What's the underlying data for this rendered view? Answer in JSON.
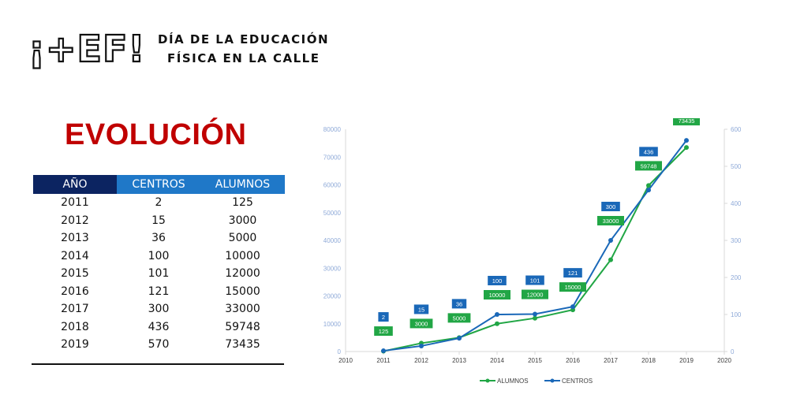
{
  "branding": {
    "logo_text": "¡+EF!",
    "tagline_line1": "DÍA DE LA EDUCACIÓN",
    "tagline_line2": "FÍSICA EN LA CALLE"
  },
  "heading": "EVOLUCIÓN",
  "table": {
    "columns": [
      "AÑO",
      "CENTROS",
      "ALUMNOS"
    ],
    "rows": [
      [
        "2011",
        "2",
        "125"
      ],
      [
        "2012",
        "15",
        "3000"
      ],
      [
        "2013",
        "36",
        "5000"
      ],
      [
        "2014",
        "100",
        "10000"
      ],
      [
        "2015",
        "101",
        "12000"
      ],
      [
        "2016",
        "121",
        "15000"
      ],
      [
        "2017",
        "300",
        "33000"
      ],
      [
        "2018",
        "436",
        "59748"
      ],
      [
        "2019",
        "570",
        "73435"
      ]
    ]
  },
  "chart_data": {
    "type": "line",
    "x": [
      2011,
      2012,
      2013,
      2014,
      2015,
      2016,
      2017,
      2018,
      2019
    ],
    "xlim": [
      2010,
      2020
    ],
    "x_ticks": [
      2010,
      2011,
      2012,
      2013,
      2014,
      2015,
      2016,
      2017,
      2018,
      2019,
      2020
    ],
    "ylim_left": [
      0,
      80000
    ],
    "y_ticks_left": [
      0,
      10000,
      20000,
      30000,
      40000,
      50000,
      60000,
      70000,
      80000
    ],
    "ylim_right": [
      0,
      600
    ],
    "y_ticks_right": [
      0,
      100,
      200,
      300,
      400,
      500,
      600
    ],
    "grid": false,
    "legend_position": "bottom",
    "series": [
      {
        "name": "ALUMNOS",
        "axis": "left",
        "color": "#21a645",
        "values": [
          125,
          3000,
          5000,
          10000,
          12000,
          15000,
          33000,
          59748,
          73435
        ]
      },
      {
        "name": "CENTROS",
        "axis": "right",
        "color": "#1a68b8",
        "values": [
          2,
          15,
          36,
          100,
          101,
          121,
          300,
          436,
          570
        ]
      }
    ],
    "data_labels": true
  }
}
